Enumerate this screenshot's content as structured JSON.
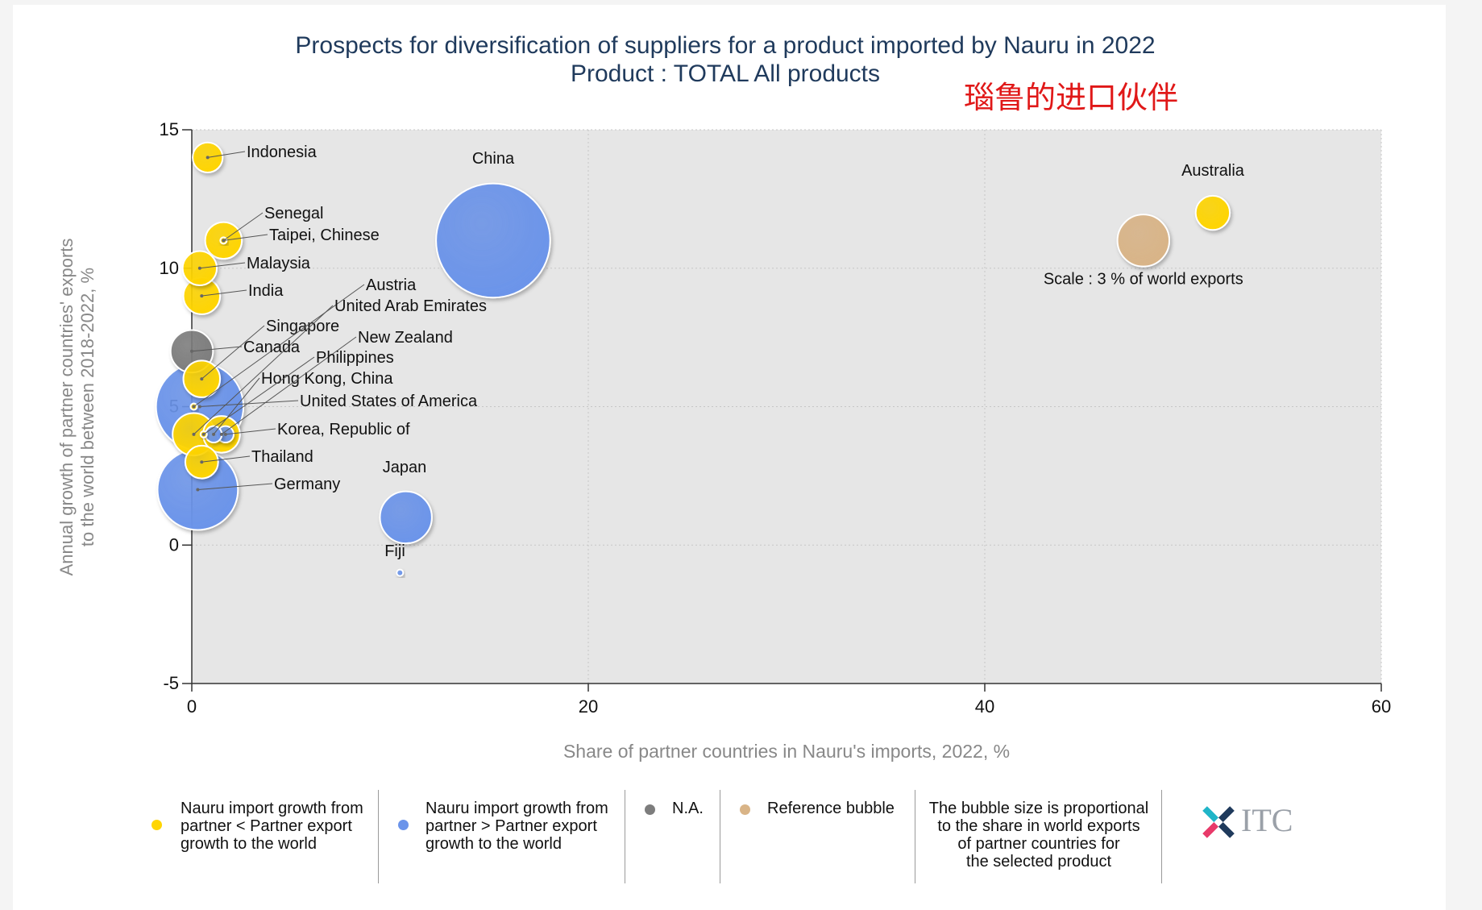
{
  "title": "Prospects for diversification of suppliers for a product imported by Nauru in 2022",
  "subtitle": "Product : TOTAL All products",
  "annotation_cn": "瑙鲁的进口伙伴",
  "colors": {
    "yellow": "#ffd500",
    "blue": "#6b94ea",
    "gray": "#7d7d7d",
    "reference": "#d9b487",
    "plot_bg": "#e6e6e6"
  },
  "chart_data": {
    "type": "scatter",
    "title": "Prospects for diversification of suppliers for a product imported by Nauru in 2022",
    "subtitle": "Product : TOTAL All products",
    "xlabel": "Share of partner countries in Nauru's imports, 2022, %",
    "ylabel": "Annual growth of partner countries' exports to the world between 2018-2022, %",
    "ylabel_lines": [
      "Annual growth of partner countries' exports",
      "to the world between 2018-2022, %"
    ],
    "xlim": [
      0,
      60
    ],
    "ylim": [
      -5,
      15
    ],
    "xticks": [
      0,
      20,
      40,
      60
    ],
    "yticks": [
      -5,
      0,
      5,
      10,
      15
    ],
    "grid": true,
    "size_unit": "share in world exports, %",
    "points": [
      {
        "label": "China",
        "x": 15.2,
        "y": 11.0,
        "size": 14.5,
        "group": "blue"
      },
      {
        "label": "Germany",
        "x": 0.3,
        "y": 2.0,
        "size": 7.2,
        "group": "blue"
      },
      {
        "label": "United States of America",
        "x": 0.4,
        "y": 5.0,
        "size": 8.5,
        "group": "blue"
      },
      {
        "label": "Japan",
        "x": 10.8,
        "y": 1.0,
        "size": 3.0,
        "group": "blue"
      },
      {
        "label": "Fiji",
        "x": 10.5,
        "y": -1.0,
        "size": 0.01,
        "group": "blue"
      },
      {
        "label": "Korea, Republic of",
        "x": 1.7,
        "y": 4.0,
        "size": 0.3,
        "group": "blue"
      },
      {
        "label": "Hong Kong, China",
        "x": 1.1,
        "y": 4.0,
        "size": 0.3,
        "group": "blue"
      },
      {
        "label": "Australia",
        "x": 51.5,
        "y": 12.0,
        "size": 1.3,
        "group": "yellow"
      },
      {
        "label": "Indonesia",
        "x": 0.8,
        "y": 14.0,
        "size": 1.0,
        "group": "yellow"
      },
      {
        "label": "Senegal",
        "x": 1.6,
        "y": 11.0,
        "size": 1.5,
        "group": "yellow"
      },
      {
        "label": "Taipei, Chinese",
        "x": 1.6,
        "y": 11.0,
        "size": 0.01,
        "group": "yellow"
      },
      {
        "label": "Malaysia",
        "x": 0.4,
        "y": 10.0,
        "size": 1.3,
        "group": "yellow"
      },
      {
        "label": "India",
        "x": 0.5,
        "y": 9.0,
        "size": 1.5,
        "group": "yellow"
      },
      {
        "label": "Singapore",
        "x": 0.5,
        "y": 6.0,
        "size": 1.5,
        "group": "yellow"
      },
      {
        "label": "Austria",
        "x": 0.1,
        "y": 5.0,
        "size": 0.01,
        "group": "yellow"
      },
      {
        "label": "United Arab Emirates",
        "x": 0.1,
        "y": 4.0,
        "size": 2.0,
        "group": "yellow"
      },
      {
        "label": "New Zealand",
        "x": 1.5,
        "y": 4.0,
        "size": 1.5,
        "group": "yellow"
      },
      {
        "label": "Philippines",
        "x": 0.6,
        "y": 4.0,
        "size": 0.01,
        "group": "yellow"
      },
      {
        "label": "Thailand",
        "x": 0.5,
        "y": 3.0,
        "size": 1.2,
        "group": "yellow"
      },
      {
        "label": "Canada",
        "x": 0.0,
        "y": 7.0,
        "size": 2.0,
        "group": "gray"
      }
    ],
    "reference_bubble": {
      "label": "Scale : 3 % of world exports",
      "x": 48.0,
      "y": 11.0,
      "size": 3.0
    }
  },
  "legend": [
    {
      "color": "yellow",
      "text": [
        "Nauru import growth from",
        "partner < Partner export",
        "growth to the world"
      ]
    },
    {
      "color": "blue",
      "text": [
        "Nauru import growth from",
        "partner > Partner export",
        "growth to the world"
      ]
    },
    {
      "color": "gray",
      "text": [
        "N.A."
      ]
    },
    {
      "color": "reference",
      "text": [
        "Reference bubble"
      ]
    },
    {
      "color": null,
      "text": [
        "The bubble size is proportional",
        "to the share in world exports",
        "of partner countries for",
        "the selected product"
      ]
    }
  ],
  "logo_text": "ITC"
}
